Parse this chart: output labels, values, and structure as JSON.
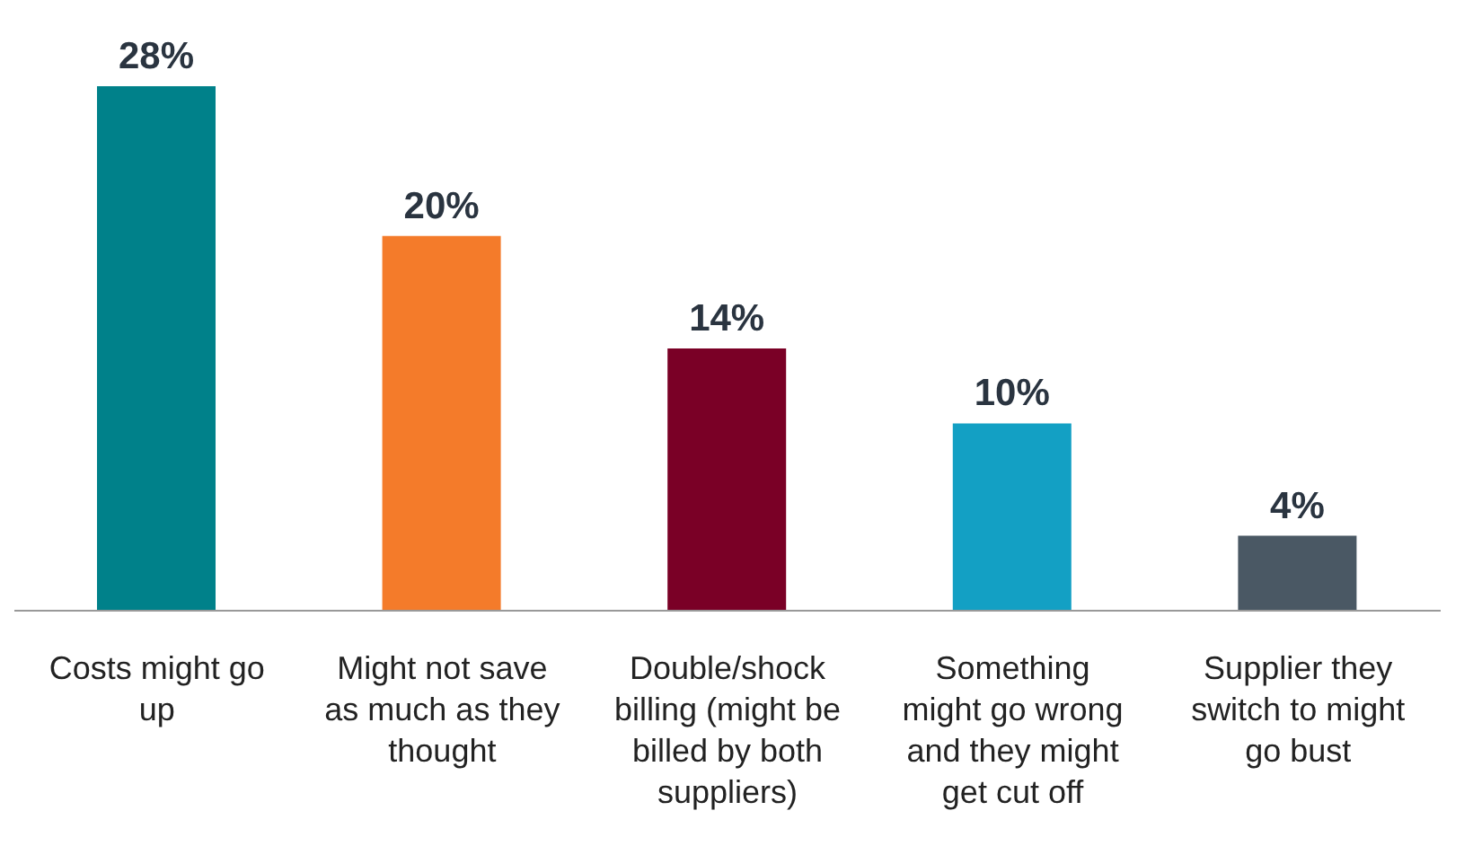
{
  "chart_data": {
    "type": "bar",
    "categories": [
      "Costs might go up",
      "Might not save as much as they thought",
      "Double/shock billing (might be billed by both suppliers)",
      "Something might go wrong and they might get cut off",
      "Supplier they switch to might go bust"
    ],
    "values": [
      28,
      20,
      14,
      10,
      4
    ],
    "colors": [
      "#00818a",
      "#f47b2a",
      "#7a0026",
      "#13a0c4",
      "#4a5864"
    ],
    "value_labels": [
      "28%",
      "20%",
      "14%",
      "10%",
      "4%"
    ],
    "grid": false,
    "legend": false
  }
}
